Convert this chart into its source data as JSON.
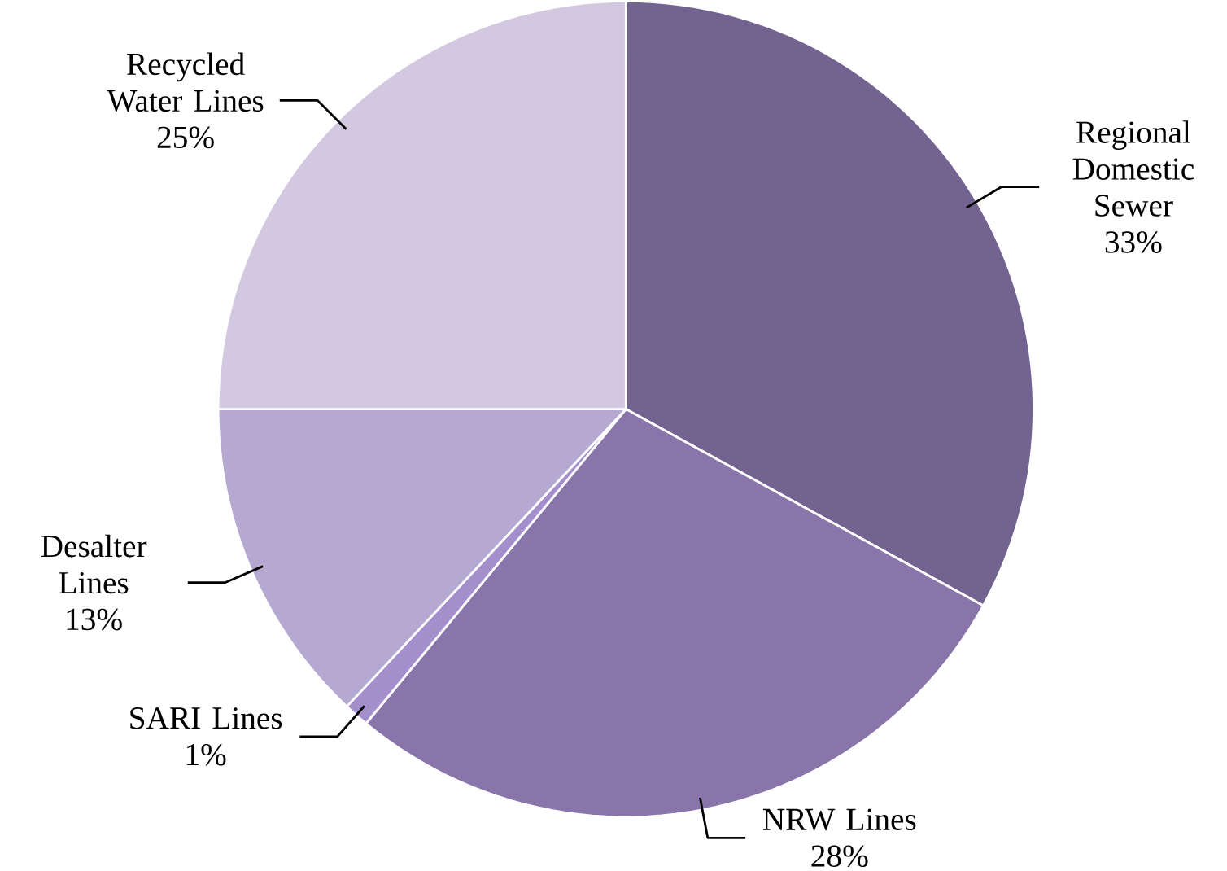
{
  "chart_data": {
    "type": "pie",
    "categories": [
      "Regional Domestic Sewer",
      "NRW Lines",
      "SARI Lines",
      "Desalter Lines",
      "Recycled Water Lines"
    ],
    "values": [
      33,
      28,
      1,
      13,
      25
    ],
    "value_labels": [
      "33%",
      "28%",
      "1%",
      "13%",
      "25%"
    ],
    "colors": [
      "#736390",
      "#8a75aa",
      "#a48fcc",
      "#b5a9d1",
      "#d2c9e1"
    ]
  }
}
